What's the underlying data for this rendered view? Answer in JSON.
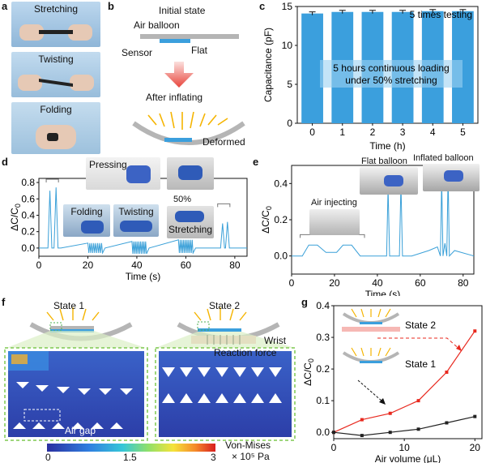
{
  "labels": {
    "a": "a",
    "b": "b",
    "c": "c",
    "d": "d",
    "e": "e",
    "f": "f",
    "g": "g"
  },
  "panel_a": {
    "photos": [
      "Stretching",
      "Twisting",
      "Folding"
    ]
  },
  "panel_b": {
    "initial_state": "Initial state",
    "air_balloon": "Air balloon",
    "sensor": "Sensor",
    "flat": "Flat",
    "after_inflating": "After inflating",
    "deformed": "Deformed"
  },
  "chart_c": {
    "type": "bar",
    "title": "5 times testing",
    "annotation_line1": "5 hours continuous loading",
    "annotation_line2": "under 50% stretching",
    "categories": [
      "0",
      "1",
      "2",
      "3",
      "4",
      "5"
    ],
    "values": [
      14.1,
      14.3,
      14.3,
      14.3,
      14.4,
      14.4
    ],
    "xlabel": "Time (h)",
    "ylabel": "Capacitance (pF)",
    "ylim": [
      0,
      15
    ],
    "yticks": [
      "0",
      "5",
      "10",
      "15"
    ],
    "color": "#3b9fdd"
  },
  "chart_d": {
    "type": "line",
    "ylabel_main": "ΔC/C",
    "ylabel_sub": "0",
    "xlabel": "Time (s)",
    "xlim": [
      0,
      85
    ],
    "ylim": [
      -0.1,
      0.85
    ],
    "xticks": [
      "0",
      "20",
      "40",
      "60",
      "80"
    ],
    "yticks": [
      "0.0",
      "0.2",
      "0.4",
      "0.6",
      "0.8"
    ],
    "insets": [
      "Pressing",
      "Folding",
      "Twisting",
      "50%",
      "Stretching"
    ],
    "color": "#3aa0d8"
  },
  "chart_e": {
    "type": "line",
    "ylabel_main": "ΔC/C",
    "ylabel_sub": "0",
    "xlabel": "Time (s)",
    "xlim": [
      0,
      85
    ],
    "ylim": [
      -0.1,
      0.5
    ],
    "xticks": [
      "0",
      "20",
      "40",
      "60",
      "80"
    ],
    "yticks": [
      "0.0",
      "0.2",
      "0.4"
    ],
    "insets": [
      "Air injecting",
      "Flat balloon",
      "Inflated balloon"
    ],
    "color": "#3aa0d8"
  },
  "panel_f": {
    "state1": "State 1",
    "state2": "State 2",
    "wrist": "Wrist",
    "reaction_force": "Reaction force",
    "air_gap": "Air gap",
    "colorbar_title": "Von-Mises",
    "colorbar_unit": "× 10⁵ Pa",
    "colorbar_ticks": [
      "0",
      "1.5",
      "3"
    ]
  },
  "chart_g": {
    "type": "line",
    "xlabel": "Air volume (μL)",
    "ylabel_main": "ΔC/C",
    "ylabel_sub": "0",
    "xlim": [
      0,
      21
    ],
    "ylim": [
      -0.02,
      0.4
    ],
    "xticks": [
      "0",
      "10",
      "20"
    ],
    "yticks": [
      "0.0",
      "0.1",
      "0.2",
      "0.3",
      "0.4"
    ],
    "series": [
      {
        "name": "State 2",
        "x": [
          0,
          4,
          8,
          12,
          16,
          20
        ],
        "y": [
          0.0,
          0.04,
          0.06,
          0.1,
          0.19,
          0.32
        ],
        "color": "#e8291f"
      },
      {
        "name": "State 1",
        "x": [
          0,
          4,
          8,
          12,
          16,
          20
        ],
        "y": [
          0.0,
          -0.01,
          0.0,
          0.01,
          0.03,
          0.05
        ],
        "color": "#222222"
      }
    ],
    "legend_state2": "State 2",
    "legend_state1": "State 1"
  }
}
